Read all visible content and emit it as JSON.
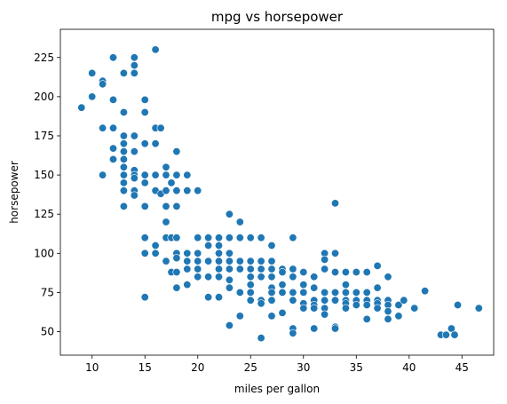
{
  "chart_data": {
    "type": "scatter",
    "title": "mpg vs horsepower",
    "xlabel": "miles per gallon",
    "ylabel": "horsepower",
    "xlim": [
      7,
      48
    ],
    "ylim": [
      35,
      243
    ],
    "xticks": [
      10,
      15,
      20,
      25,
      30,
      35,
      40,
      45
    ],
    "yticks": [
      50,
      75,
      100,
      125,
      150,
      175,
      200,
      225
    ],
    "grid": false,
    "legend": "none",
    "point_color": "#1f77b4",
    "series": [
      {
        "points": [
          [
            9,
            193
          ],
          [
            10,
            215
          ],
          [
            10,
            200
          ],
          [
            11,
            210
          ],
          [
            11,
            208
          ],
          [
            11,
            180
          ],
          [
            11,
            150
          ],
          [
            12,
            225
          ],
          [
            12,
            198
          ],
          [
            12,
            180
          ],
          [
            12,
            167
          ],
          [
            12,
            160
          ],
          [
            13,
            215
          ],
          [
            13,
            190
          ],
          [
            13,
            175
          ],
          [
            13,
            170
          ],
          [
            13,
            165
          ],
          [
            13,
            160
          ],
          [
            13,
            155
          ],
          [
            13,
            150
          ],
          [
            13,
            145
          ],
          [
            13,
            140
          ],
          [
            13,
            130
          ],
          [
            14,
            225
          ],
          [
            14,
            220
          ],
          [
            14,
            215
          ],
          [
            14,
            175
          ],
          [
            14,
            165
          ],
          [
            14,
            153
          ],
          [
            14,
            150
          ],
          [
            14,
            148
          ],
          [
            14,
            140
          ],
          [
            14,
            137
          ],
          [
            15,
            198
          ],
          [
            15,
            190
          ],
          [
            15,
            170
          ],
          [
            15,
            150
          ],
          [
            15,
            145
          ],
          [
            15,
            130
          ],
          [
            15,
            110
          ],
          [
            15,
            100
          ],
          [
            15,
            72
          ],
          [
            16,
            230
          ],
          [
            16,
            180
          ],
          [
            16,
            170
          ],
          [
            16,
            150
          ],
          [
            16,
            140
          ],
          [
            16,
            105
          ],
          [
            16,
            100
          ],
          [
            16.5,
            180
          ],
          [
            16.5,
            138
          ],
          [
            17,
            155
          ],
          [
            17,
            150
          ],
          [
            17,
            140
          ],
          [
            17,
            130
          ],
          [
            17,
            120
          ],
          [
            17,
            110
          ],
          [
            17,
            95
          ],
          [
            17.5,
            145
          ],
          [
            17.5,
            110
          ],
          [
            17.5,
            88
          ],
          [
            18,
            165
          ],
          [
            18,
            150
          ],
          [
            18,
            140
          ],
          [
            18,
            130
          ],
          [
            18,
            110
          ],
          [
            18,
            100
          ],
          [
            18,
            97
          ],
          [
            18,
            88
          ],
          [
            18,
            78
          ],
          [
            19,
            150
          ],
          [
            19,
            140
          ],
          [
            19,
            100
          ],
          [
            19,
            95
          ],
          [
            19,
            90
          ],
          [
            19,
            80
          ],
          [
            20,
            140
          ],
          [
            20,
            110
          ],
          [
            20,
            100
          ],
          [
            20,
            95
          ],
          [
            20,
            90
          ],
          [
            20,
            85
          ],
          [
            21,
            110
          ],
          [
            21,
            105
          ],
          [
            21,
            95
          ],
          [
            21,
            85
          ],
          [
            21,
            72
          ],
          [
            22,
            110
          ],
          [
            22,
            105
          ],
          [
            22,
            100
          ],
          [
            22,
            95
          ],
          [
            22,
            90
          ],
          [
            22,
            85
          ],
          [
            22,
            72
          ],
          [
            23,
            125
          ],
          [
            23,
            110
          ],
          [
            23,
            100
          ],
          [
            23,
            95
          ],
          [
            23,
            90
          ],
          [
            23,
            83
          ],
          [
            23,
            78
          ],
          [
            23,
            54
          ],
          [
            24,
            120
          ],
          [
            24,
            110
          ],
          [
            24,
            95
          ],
          [
            24,
            90
          ],
          [
            24,
            75
          ],
          [
            24,
            60
          ],
          [
            25,
            110
          ],
          [
            25,
            95
          ],
          [
            25,
            90
          ],
          [
            25,
            85
          ],
          [
            25,
            80
          ],
          [
            25,
            75
          ],
          [
            25,
            70
          ],
          [
            26,
            110
          ],
          [
            26,
            95
          ],
          [
            26,
            90
          ],
          [
            26,
            85
          ],
          [
            26,
            70
          ],
          [
            26,
            68
          ],
          [
            26,
            46
          ],
          [
            27,
            105
          ],
          [
            27,
            95
          ],
          [
            27,
            90
          ],
          [
            27,
            85
          ],
          [
            27,
            78
          ],
          [
            27,
            75
          ],
          [
            27,
            70
          ],
          [
            27,
            60
          ],
          [
            28,
            90
          ],
          [
            28,
            88
          ],
          [
            28,
            80
          ],
          [
            28,
            75
          ],
          [
            28,
            62
          ],
          [
            29,
            110
          ],
          [
            29,
            90
          ],
          [
            29,
            85
          ],
          [
            29,
            75
          ],
          [
            29,
            70
          ],
          [
            29,
            52
          ],
          [
            29,
            49
          ],
          [
            30,
            88
          ],
          [
            30,
            80
          ],
          [
            30,
            75
          ],
          [
            30,
            68
          ],
          [
            30,
            65
          ],
          [
            31,
            85
          ],
          [
            31,
            78
          ],
          [
            31,
            70
          ],
          [
            31,
            67
          ],
          [
            31,
            65
          ],
          [
            31,
            52
          ],
          [
            32,
            100
          ],
          [
            32,
            96
          ],
          [
            32,
            90
          ],
          [
            32,
            75
          ],
          [
            32,
            70
          ],
          [
            32,
            65
          ],
          [
            32,
            61
          ],
          [
            33,
            132
          ],
          [
            33,
            100
          ],
          [
            33,
            88
          ],
          [
            33,
            75
          ],
          [
            33,
            70
          ],
          [
            33,
            53
          ],
          [
            33,
            52
          ],
          [
            34,
            88
          ],
          [
            34,
            80
          ],
          [
            34,
            75
          ],
          [
            34,
            70
          ],
          [
            34,
            68
          ],
          [
            34,
            65
          ],
          [
            35,
            88
          ],
          [
            35,
            75
          ],
          [
            35,
            70
          ],
          [
            35,
            67
          ],
          [
            36,
            88
          ],
          [
            36,
            75
          ],
          [
            36,
            70
          ],
          [
            36,
            67
          ],
          [
            36,
            58
          ],
          [
            37,
            92
          ],
          [
            37,
            78
          ],
          [
            37,
            70
          ],
          [
            37,
            68
          ],
          [
            37,
            65
          ],
          [
            38,
            85
          ],
          [
            38,
            70
          ],
          [
            38,
            67
          ],
          [
            38,
            63
          ],
          [
            38,
            58
          ],
          [
            39,
            67
          ],
          [
            39,
            60
          ],
          [
            39.5,
            70
          ],
          [
            40.5,
            65
          ],
          [
            41.5,
            76
          ],
          [
            43,
            48
          ],
          [
            43.5,
            48
          ],
          [
            44,
            52
          ],
          [
            44.3,
            48
          ],
          [
            44.6,
            67
          ],
          [
            46.6,
            65
          ]
        ]
      }
    ]
  }
}
